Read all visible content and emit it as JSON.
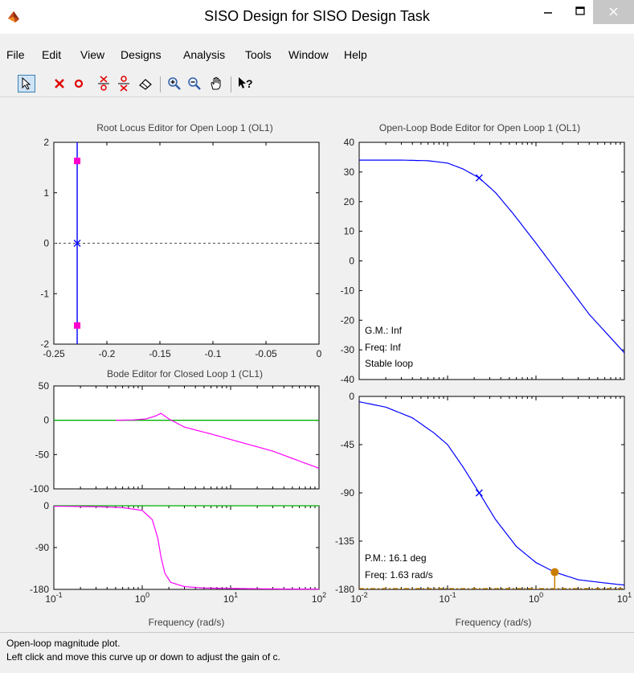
{
  "window": {
    "title": "SISO Design for SISO Design Task"
  },
  "menu": [
    "File",
    "Edit",
    "View",
    "Designs",
    "Analysis",
    "Tools",
    "Window",
    "Help"
  ],
  "toolbar": {
    "tools": [
      "select-tool",
      "add-pole-tool",
      "add-zero-tool",
      "add-lead-tool",
      "add-lag-tool",
      "eraser-tool",
      "zoom-in-tool",
      "zoom-out-tool",
      "pan-tool",
      "context-help-tool"
    ]
  },
  "colors": {
    "locus": "#0000ff",
    "closed_loop": "#ff00ff",
    "unity": "#00b000",
    "margin_marker": "#c87d00",
    "root_marker": "#ff00cc"
  },
  "chart_data": [
    {
      "type": "line",
      "title": "Root Locus Editor for Open Loop 1 (OL1)",
      "xlabel": "",
      "ylabel": "",
      "xlim": [
        -0.25,
        0
      ],
      "ylim": [
        -2,
        2
      ],
      "xticks": [
        "-0.25",
        "-0.2",
        "-0.15",
        "-0.1",
        "-0.05",
        "0"
      ],
      "yticks": [
        "-2",
        "-1",
        "0",
        "1",
        "2"
      ],
      "locus_x": -0.228,
      "pole": {
        "x": -0.228,
        "y": 0
      },
      "closed_loop_poles": [
        {
          "x": -0.228,
          "y": 1.63
        },
        {
          "x": -0.228,
          "y": -1.63
        }
      ]
    },
    {
      "type": "line",
      "title": "Open-Loop Bode Editor for Open Loop 1 (OL1)",
      "panel": "magnitude",
      "xscale": "log",
      "xlim": [
        0.01,
        10
      ],
      "ylim": [
        -40,
        40
      ],
      "yticks": [
        "-40",
        "-30",
        "-20",
        "-10",
        "0",
        "10",
        "20",
        "30",
        "40"
      ],
      "series": [
        {
          "x": [
            0.01,
            0.03,
            0.06,
            0.1,
            0.15,
            0.228,
            0.35,
            0.55,
            1,
            2,
            4,
            10
          ],
          "values": [
            34,
            34,
            33.8,
            33,
            31,
            28,
            23,
            16,
            6,
            -6,
            -18,
            -31
          ]
        }
      ],
      "marker": {
        "x": 0.228,
        "y": 28
      },
      "annotations": [
        "G.M.: Inf",
        "Freq: Inf",
        "Stable loop"
      ]
    },
    {
      "type": "line",
      "title": "",
      "panel": "phase",
      "xscale": "log",
      "xlim": [
        0.01,
        10
      ],
      "ylim": [
        -180,
        0
      ],
      "xticks": [
        "10^-2",
        "10^-1",
        "10^0",
        "10^1"
      ],
      "yticks": [
        "0",
        "-45",
        "-90",
        "-135",
        "-180"
      ],
      "xlabel": "Frequency (rad/s)",
      "series": [
        {
          "x": [
            0.01,
            0.02,
            0.04,
            0.07,
            0.1,
            0.15,
            0.228,
            0.35,
            0.6,
            1,
            1.63,
            3,
            6,
            10
          ],
          "values": [
            -5,
            -10,
            -20,
            -34,
            -45,
            -66,
            -90,
            -115,
            -140,
            -155,
            -163.9,
            -171,
            -174,
            -176
          ]
        }
      ],
      "marker": {
        "x": 0.228,
        "y": -90
      },
      "margin_point": {
        "x": 1.63,
        "y": -163.9
      },
      "annotations": [
        "P.M.: 16.1 deg",
        "Freq: 1.63 rad/s"
      ]
    },
    {
      "type": "line",
      "title": "Bode Editor for Closed Loop 1 (CL1)",
      "panel": "magnitude",
      "xscale": "log",
      "xlim": [
        0.1,
        100
      ],
      "ylim": [
        -100,
        50
      ],
      "yticks": [
        "-100",
        "-50",
        "0",
        "50"
      ],
      "series": [
        {
          "x": [
            0.5,
            0.8,
            1.1,
            1.4,
            1.63,
            2,
            3,
            6,
            10,
            30,
            100
          ],
          "values": [
            0,
            0.5,
            2,
            6,
            10,
            2,
            -10,
            -20,
            -28,
            -45,
            -70
          ]
        },
        {
          "x": [
            0.1,
            100
          ],
          "values": [
            0,
            0
          ]
        }
      ]
    },
    {
      "type": "line",
      "title": "",
      "panel": "phase",
      "xscale": "log",
      "xlim": [
        0.1,
        100
      ],
      "ylim": [
        -180,
        0
      ],
      "xticks": [
        "10^-1",
        "10^0",
        "10^1",
        "10^2"
      ],
      "yticks": [
        "-180",
        "-90",
        "0"
      ],
      "xlabel": "Frequency (rad/s)",
      "series": [
        {
          "x": [
            0.1,
            0.3,
            0.6,
            1,
            1.3,
            1.5,
            1.63,
            1.8,
            2.1,
            3,
            5,
            10,
            30,
            100
          ],
          "values": [
            -1,
            -2,
            -4,
            -10,
            -30,
            -70,
            -110,
            -145,
            -165,
            -174,
            -177,
            -178,
            -179,
            -179.5
          ]
        },
        {
          "x": [
            0.1,
            100
          ],
          "values": [
            0,
            0
          ]
        }
      ]
    }
  ],
  "status": {
    "line1": "Open-loop magnitude plot.",
    "line2": "Left click and move this curve up or down to adjust the gain of c."
  }
}
